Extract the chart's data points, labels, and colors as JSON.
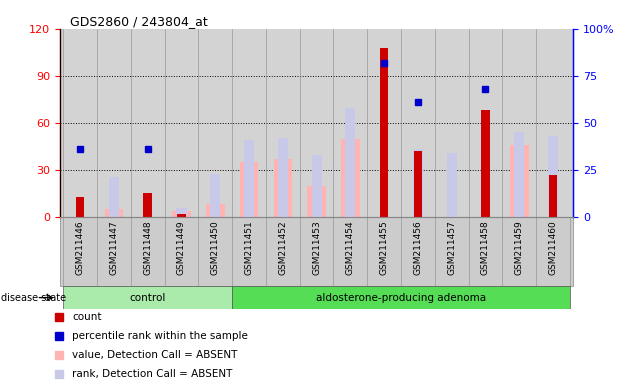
{
  "title": "GDS2860 / 243804_at",
  "samples": [
    "GSM211446",
    "GSM211447",
    "GSM211448",
    "GSM211449",
    "GSM211450",
    "GSM211451",
    "GSM211452",
    "GSM211453",
    "GSM211454",
    "GSM211455",
    "GSM211456",
    "GSM211457",
    "GSM211458",
    "GSM211459",
    "GSM211460"
  ],
  "count": [
    13,
    0,
    15,
    2,
    0,
    0,
    0,
    0,
    0,
    108,
    42,
    0,
    68,
    0,
    27
  ],
  "percentile": [
    36,
    0,
    36,
    0,
    0,
    0,
    0,
    0,
    0,
    82,
    61,
    0,
    68,
    0,
    0
  ],
  "value_absent": [
    0,
    5,
    0,
    4,
    8,
    35,
    37,
    20,
    50,
    0,
    0,
    0,
    0,
    46,
    0
  ],
  "rank_absent": [
    0,
    21,
    0,
    5,
    23,
    41,
    42,
    33,
    58,
    0,
    36,
    34,
    0,
    45,
    43
  ],
  "has_percentile": [
    true,
    false,
    true,
    false,
    false,
    false,
    false,
    false,
    false,
    true,
    true,
    false,
    true,
    false,
    false
  ],
  "has_value_absent": [
    false,
    true,
    false,
    true,
    true,
    true,
    true,
    true,
    true,
    false,
    false,
    false,
    false,
    true,
    false
  ],
  "has_rank_absent": [
    false,
    true,
    false,
    true,
    true,
    true,
    true,
    true,
    true,
    false,
    true,
    true,
    false,
    true,
    true
  ],
  "control_count": 5,
  "adenoma_count": 10,
  "ylim_left": [
    0,
    120
  ],
  "ylim_right": [
    0,
    100
  ],
  "yticks_left": [
    0,
    30,
    60,
    90,
    120
  ],
  "yticks_right": [
    0,
    25,
    50,
    75,
    100
  ],
  "color_count": "#cc0000",
  "color_percentile": "#0000cc",
  "color_value_absent": "#ffb3b3",
  "color_rank_absent": "#c8c8e8",
  "color_control_bg": "#aaeaaa",
  "color_adenoma_bg": "#55dd55",
  "color_plot_bg": "#d3d3d3",
  "color_sample_bg": "#cccccc",
  "disease_state_label": "disease state",
  "control_label": "control",
  "adenoma_label": "aldosterone-producing adenoma",
  "legend_items": [
    {
      "label": "count",
      "color": "#cc0000",
      "marker": "s"
    },
    {
      "label": "percentile rank within the sample",
      "color": "#0000cc",
      "marker": "s"
    },
    {
      "label": "value, Detection Call = ABSENT",
      "color": "#ffb3b3",
      "marker": "s"
    },
    {
      "label": "rank, Detection Call = ABSENT",
      "color": "#c8c8e8",
      "marker": "s"
    }
  ]
}
